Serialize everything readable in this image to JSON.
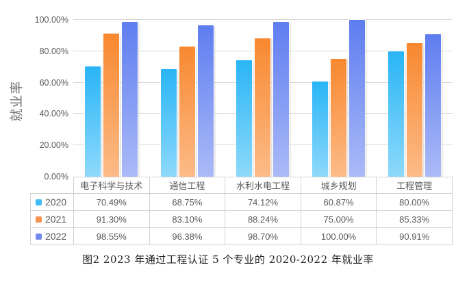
{
  "chart_data": {
    "type": "bar",
    "title": "",
    "ylabel": "就业率",
    "xlabel": "",
    "categories": [
      "电子科学与技术",
      "通信工程",
      "水利水电工程",
      "城乡规划",
      "工程管理"
    ],
    "series": [
      {
        "name": "2020",
        "legend_color": "#41bdf5",
        "gradient_top": "#29b5f6",
        "gradient_bottom": "#8ed9fb",
        "values": [
          70.49,
          68.75,
          74.12,
          60.87,
          80.0
        ],
        "value_labels": [
          "70.49%",
          "68.75%",
          "74.12%",
          "60.87%",
          "80.00%"
        ]
      },
      {
        "name": "2021",
        "legend_color": "#f79250",
        "gradient_top": "#f8882f",
        "gradient_bottom": "#fcbb88",
        "values": [
          91.3,
          83.1,
          88.24,
          75.0,
          85.33
        ],
        "value_labels": [
          "91.30%",
          "83.10%",
          "88.24%",
          "75.00%",
          "85.33%"
        ]
      },
      {
        "name": "2022",
        "legend_color": "#7289ef",
        "gradient_top": "#5e7df0",
        "gradient_bottom": "#abbaf7",
        "values": [
          98.55,
          96.38,
          98.7,
          100.0,
          90.91
        ],
        "value_labels": [
          "98.55%",
          "96.38%",
          "98.70%",
          "100.00%",
          "90.91%"
        ]
      }
    ],
    "y_ticks": [
      {
        "value": 100,
        "label": "100.00%"
      },
      {
        "value": 80,
        "label": "80.00%"
      },
      {
        "value": 60,
        "label": "60.00%"
      },
      {
        "value": 40,
        "label": "40.00%"
      },
      {
        "value": 20,
        "label": "20.00%"
      },
      {
        "value": 0,
        "label": "0.00%"
      }
    ],
    "ylim": [
      0,
      100
    ],
    "grid": true,
    "gridline_color": "#d9d9d9",
    "axis_text_color": "#595959",
    "legend_position": "table-left"
  },
  "caption": "图2  2023 年通过工程认证 5 个专业的 2020-2022 年就业率"
}
